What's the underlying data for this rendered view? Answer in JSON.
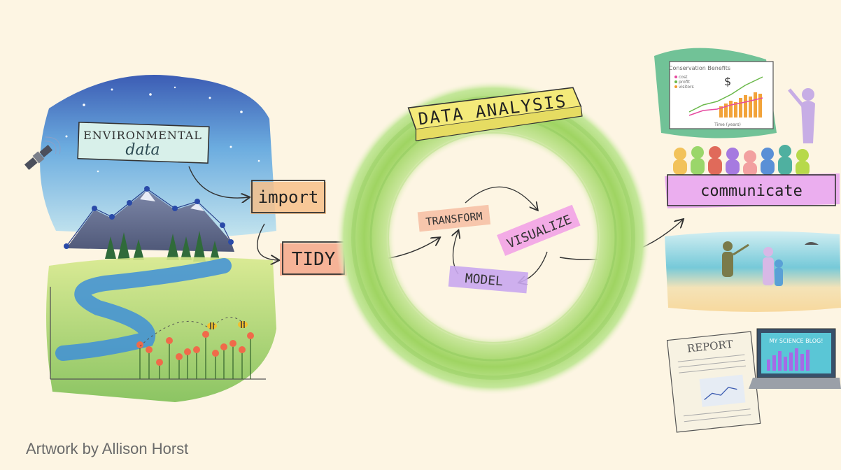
{
  "diagram": {
    "environmental_title_line1": "ENVIRONMENTAL",
    "environmental_title_line2": "data",
    "import_label": "import",
    "tidy_label": "TIDY",
    "analysis_title": "DATA ANALYSIS",
    "cycle": {
      "transform": "TRANSFORM",
      "visualize": "VISUALIZE",
      "model": "MODEL"
    },
    "communicate_label": "communicate",
    "presentation_chart": {
      "title": "Conservation Benefits",
      "legend": [
        "cost",
        "profit",
        "visitors"
      ],
      "xlabel": "Time (years)"
    },
    "report_label": "REPORT",
    "blog_label": "MY SCIENCE BLOG!"
  },
  "credit": "Artwork by Allison Horst",
  "colors": {
    "background": "#fdf5e3",
    "ring_green": "#a9d86e",
    "import_orange": "#f7c08a",
    "tidy_salmon": "#f4a78a",
    "transform_peach": "#f6c1a5",
    "visualize_pink": "#f2a3e6",
    "model_lavender": "#c9a7ee",
    "analysis_yellow": "#f4ea7a",
    "communicate_magenta": "#e9a6f0"
  }
}
